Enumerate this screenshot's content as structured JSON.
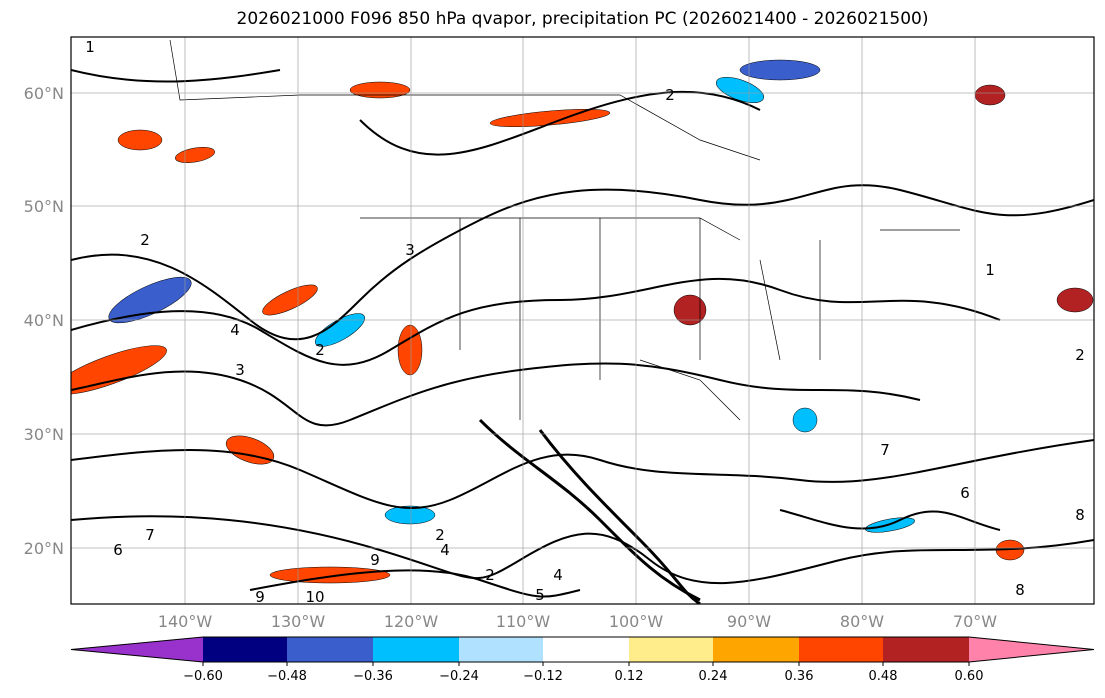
{
  "title": "2026021000 F096 850 hPa qvapor, precipitation PC (2026021400 - 2026021500)",
  "axes": {
    "lat_labels": [
      "60°N",
      "50°N",
      "40°N",
      "30°N",
      "20°N"
    ],
    "lon_labels": [
      "140°W",
      "130°W",
      "120°W",
      "110°W",
      "100°W",
      "90°W",
      "80°W",
      "70°W"
    ]
  },
  "colorbar": {
    "ticks": [
      "−0.60",
      "−0.48",
      "−0.36",
      "−0.24",
      "−0.12",
      "0.12",
      "0.24",
      "0.36",
      "0.48",
      "0.60"
    ],
    "colors": [
      "#9932cc",
      "#000080",
      "#3a5fcd",
      "#00bfff",
      "#b0e2ff",
      "#ffffff",
      "#ffec8b",
      "#ffa500",
      "#ff4500",
      "#b22222",
      "#ff82ab"
    ]
  },
  "contour_labels": [
    "1",
    "2",
    "2",
    "3",
    "4",
    "3",
    "2",
    "1",
    "2",
    "7",
    "6",
    "8",
    "9",
    "10",
    "9",
    "8",
    "6",
    "7",
    "2",
    "4",
    "5",
    "4",
    "2"
  ]
}
